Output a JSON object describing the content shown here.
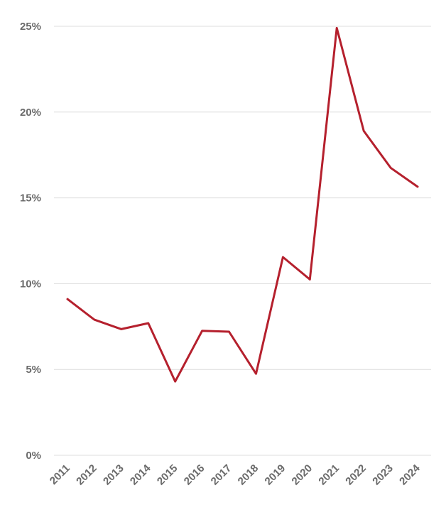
{
  "chart_data": {
    "type": "line",
    "title": "",
    "xlabel": "",
    "ylabel": "",
    "x": [
      "2011",
      "2012",
      "2013",
      "2014",
      "2015",
      "2016",
      "2017",
      "2018",
      "2019",
      "2020",
      "2021",
      "2022",
      "2023",
      "2024"
    ],
    "series": [
      {
        "values": [
          9.1,
          7.9,
          7.35,
          7.7,
          4.3,
          7.25,
          7.2,
          4.75,
          11.55,
          10.25,
          24.9,
          18.9,
          16.75,
          15.65
        ],
        "color": "#b5202d"
      }
    ],
    "ylim": [
      0,
      25
    ],
    "y_ticks": [
      0,
      5,
      10,
      15,
      20,
      25
    ],
    "y_tick_labels": [
      "0%",
      "5%",
      "10%",
      "15%",
      "20%",
      "25%"
    ],
    "grid": true,
    "legend": "none"
  }
}
